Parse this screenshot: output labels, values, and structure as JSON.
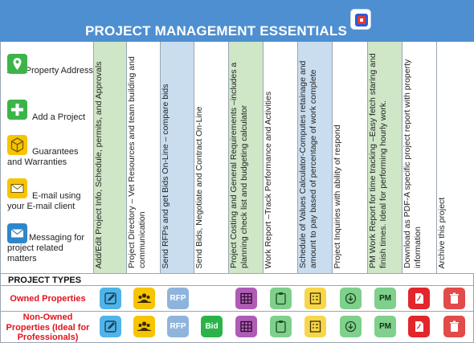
{
  "header": {
    "title": "PROJECT MANAGEMENT ESSENTIALS"
  },
  "legend": [
    {
      "label": "Add Property Address",
      "icon": "map-pin-icon"
    },
    {
      "label": "Add a Project",
      "icon": "plus-icon"
    },
    {
      "label": "Guarantees and Warranties",
      "icon": "boxes-icon"
    },
    {
      "label": "E-mail using your E-mail client",
      "icon": "envelope-icon"
    },
    {
      "label": "Messaging for project related matters",
      "icon": "mail-icon"
    }
  ],
  "columns": [
    {
      "text": "Add/Edit Project Info, Schedule, permits, and Approvals"
    },
    {
      "text": "Project Directory – Vet Resources and team building and communication"
    },
    {
      "text": "Send RFPs and get Bids On-Line – compare bids"
    },
    {
      "text": "Send Bids, Negotiate and Contract On-Line"
    },
    {
      "text": "Project Costing and General Requirements –includes a planning check list and budgeting calculator"
    },
    {
      "text": "Work Report –Track Performance and Activities"
    },
    {
      "text": "Schedule of Values Calculator-Computes retainage and amount to pay based of percentage of work complete"
    },
    {
      "text": "Project Inquiries with ability of respond"
    },
    {
      "text": "PM Work Report for time tracking –Easy fetch staring and finish times.  Ideal for performing hourly work."
    },
    {
      "text": "Download as PDF-A specific project report with property information"
    },
    {
      "text": "Archive this project"
    }
  ],
  "project_types_label": "PROJECT TYPES",
  "rows": [
    {
      "label": "Owned Properties"
    },
    {
      "label": "Non-Owned Properties (Ideal for Professionals)"
    }
  ],
  "cells": {
    "rfp": "RFP",
    "bid": "Bid",
    "pm": "PM"
  },
  "colors": {
    "header": "#4d8fd1",
    "green_col": "#cfe6c7",
    "blue_col": "#c9ddef",
    "row_label": "#e3121c"
  }
}
